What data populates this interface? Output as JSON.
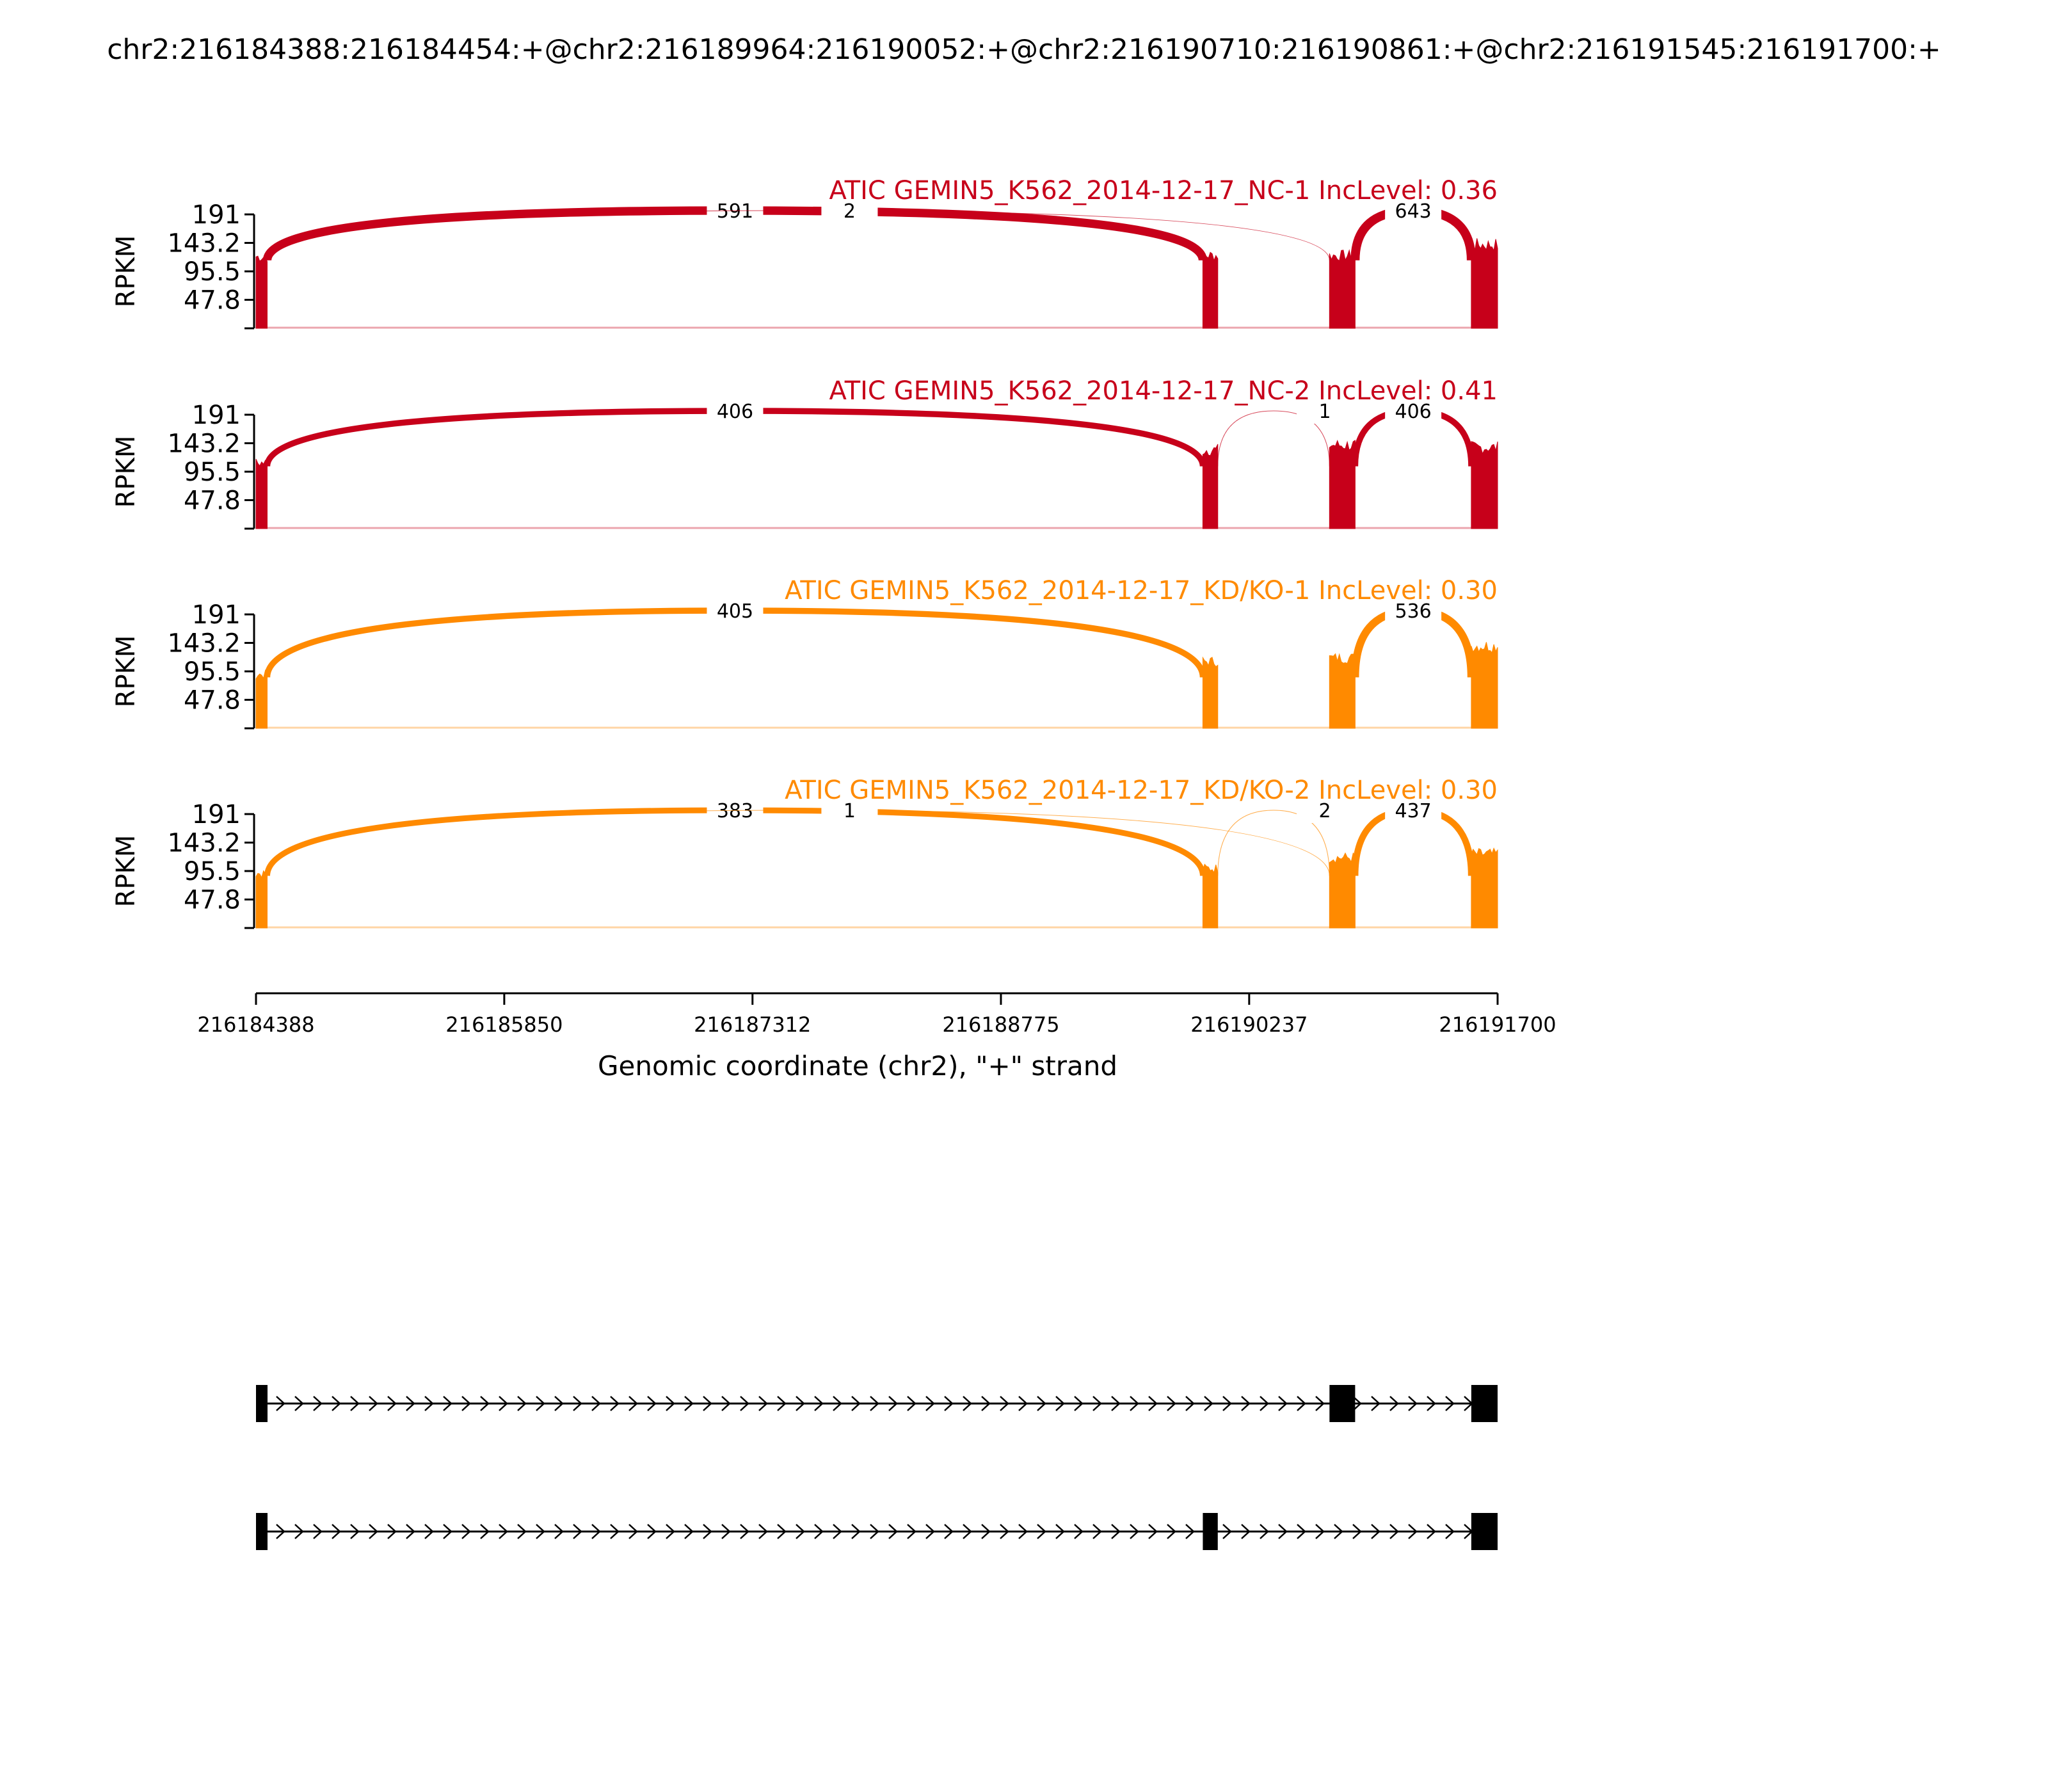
{
  "title": "chr2:216184388:216184454:+@chr2:216189964:216190052:+@chr2:216190710:216190861:+@chr2:216191545:216191700:+",
  "colors": {
    "nc": "#c7001a",
    "kd": "#ff8a00",
    "gene": "#000000"
  },
  "chart_data": {
    "type": "area",
    "subtype": "sashimi",
    "ylabel": "RPKM",
    "y_ticks": [
      "191",
      "143.2",
      "95.5",
      "47.8"
    ],
    "ylim": [
      0,
      191
    ],
    "xlabel": "Genomic coordinate (chr2), \"+\" strand",
    "x_ticks": [
      "216184388",
      "216185850",
      "216187312",
      "216188775",
      "216190237",
      "216191700"
    ],
    "xlim": [
      216184388,
      216191700
    ],
    "exons": [
      {
        "start": 216184388,
        "end": 216184454
      },
      {
        "start": 216189964,
        "end": 216190052
      },
      {
        "start": 216190710,
        "end": 216190861
      },
      {
        "start": 216191545,
        "end": 216191700
      }
    ],
    "panels": [
      {
        "label": "ATIC GEMIN5_K562_2014-12-17_NC-1 IncLevel: 0.36",
        "group": "nc",
        "exon_levels": [
          120,
          122,
          122,
          140
        ],
        "junctions": [
          {
            "from": 216184454,
            "to": 216189964,
            "count": "591"
          },
          {
            "from": 216184454,
            "to": 216190710,
            "count": "2"
          },
          {
            "from": 216190861,
            "to": 216191545,
            "count": "643"
          }
        ]
      },
      {
        "label": "ATIC GEMIN5_K562_2014-12-17_NC-2 IncLevel: 0.41",
        "group": "nc",
        "exon_levels": [
          110,
          132,
          140,
          136
        ],
        "junctions": [
          {
            "from": 216184454,
            "to": 216189964,
            "count": "406"
          },
          {
            "from": 216190052,
            "to": 216190710,
            "count": "1"
          },
          {
            "from": 216190861,
            "to": 216191545,
            "count": "406"
          }
        ]
      },
      {
        "label": "ATIC GEMIN5_K562_2014-12-17_KD/KO-1 IncLevel: 0.30",
        "group": "kd",
        "exon_levels": [
          90,
          112,
          118,
          138
        ],
        "junctions": [
          {
            "from": 216184454,
            "to": 216189964,
            "count": "405"
          },
          {
            "from": 216190861,
            "to": 216191545,
            "count": "536"
          }
        ]
      },
      {
        "label": "ATIC GEMIN5_K562_2014-12-17_KD/KO-2 IncLevel: 0.30",
        "group": "kd",
        "exon_levels": [
          92,
          100,
          118,
          124
        ],
        "junctions": [
          {
            "from": 216184454,
            "to": 216189964,
            "count": "383"
          },
          {
            "from": 216184454,
            "to": 216190710,
            "count": "1"
          },
          {
            "from": 216190052,
            "to": 216190710,
            "count": "2"
          },
          {
            "from": 216190861,
            "to": 216191545,
            "count": "437"
          }
        ]
      }
    ],
    "isoforms": [
      {
        "exons": [
          0,
          2,
          3
        ]
      },
      {
        "exons": [
          0,
          1,
          3
        ]
      }
    ]
  }
}
